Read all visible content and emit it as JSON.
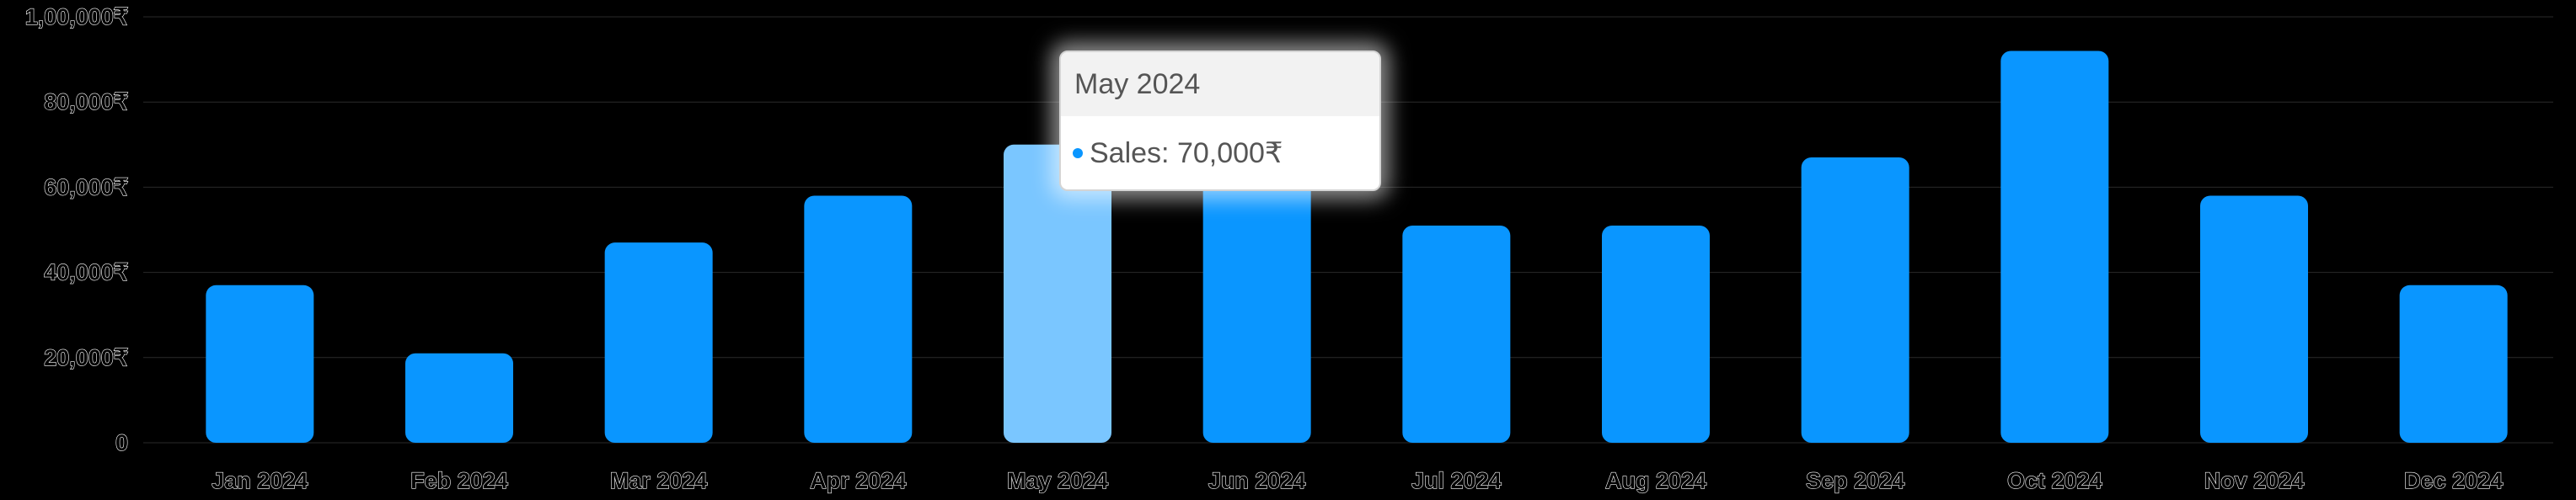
{
  "chart_data": {
    "type": "bar",
    "categories": [
      "Jan 2024",
      "Feb 2024",
      "Mar 2024",
      "Apr 2024",
      "May 2024",
      "Jun 2024",
      "Jul 2024",
      "Aug 2024",
      "Sep 2024",
      "Oct 2024",
      "Nov 2024",
      "Dec 2024"
    ],
    "series": [
      {
        "name": "Sales",
        "values": [
          37000,
          21000,
          47000,
          58000,
          70000,
          66000,
          51000,
          51000,
          67000,
          92000,
          58000,
          37000
        ]
      }
    ],
    "y_ticks": [
      "0",
      "20,000₹",
      "40,000₹",
      "60,000₹",
      "80,000₹",
      "1,00,000₹"
    ],
    "ylim": [
      0,
      100000
    ],
    "grid": true,
    "highlighted_index": 4,
    "colors": {
      "bar": "#0a96ff",
      "bar_highlight": "#7ac6ff",
      "grid": "#2a2a2a"
    }
  },
  "tooltip": {
    "title": "May 2024",
    "label": "Sales: 70,000₹",
    "dot_color": "#0a96ff"
  }
}
